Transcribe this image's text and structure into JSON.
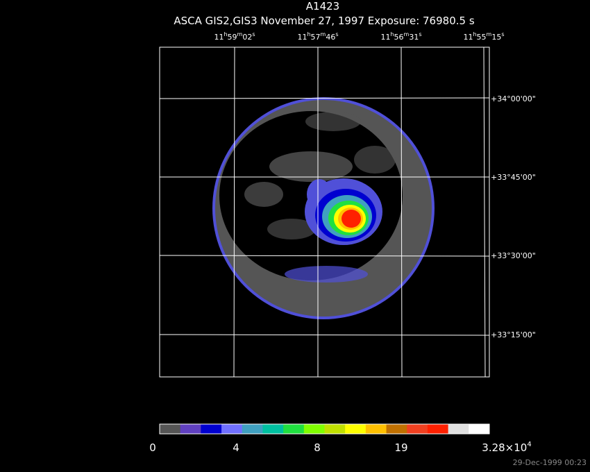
{
  "title": "A1423",
  "subtitle": "ASCA GIS2,GIS3 November 27, 1997 Exposure: 76980.5 s",
  "ra_labels": [
    [
      "11",
      "h",
      "59",
      "m",
      "02",
      "s"
    ],
    [
      "11",
      "h",
      "57",
      "m",
      "46",
      "s"
    ],
    [
      "11",
      "h",
      "56",
      "m",
      "31",
      "s"
    ],
    [
      "11",
      "h",
      "55",
      "m",
      "15",
      "s"
    ]
  ],
  "dec_labels": [
    "+34°00'00\"",
    "+33°45'00\"",
    "+33°30'00\"",
    "+33°15'00\""
  ],
  "colorbar": {
    "colors": [
      "#555555",
      "#6040c0",
      "#0000d0",
      "#7070ff",
      "#40a0c0",
      "#00c0a0",
      "#20e040",
      "#80ff00",
      "#c0e000",
      "#ffff00",
      "#ffc000",
      "#c07000",
      "#f04020",
      "#ff2000",
      "#e0e0e0",
      "#ffffff"
    ],
    "labels": [
      "0",
      "4",
      "8",
      "19",
      {
        "base": "3.28×10",
        "exponent": "4"
      }
    ]
  },
  "timestamp": "29-Dec-1999 00:23"
}
